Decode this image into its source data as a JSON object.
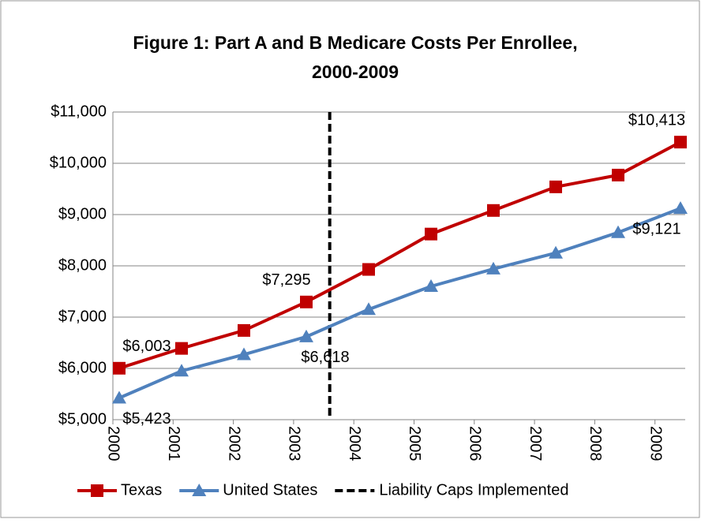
{
  "chart_data": {
    "type": "line",
    "title": [
      "Figure 1: Part A and B Medicare Costs Per Enrollee,",
      "2000-2009"
    ],
    "categories": [
      "2000",
      "2001",
      "2002",
      "2003",
      "2004",
      "2005",
      "2006",
      "2007",
      "2008",
      "2009"
    ],
    "series": [
      {
        "name": "Texas",
        "color": "#c00000",
        "marker": "square",
        "values": [
          6003,
          6390,
          6740,
          7295,
          7930,
          8620,
          9080,
          9540,
          9770,
          10413
        ],
        "value_labels": [
          "$6,003",
          null,
          null,
          "$7,295",
          null,
          null,
          null,
          null,
          null,
          "$10,413"
        ]
      },
      {
        "name": "United States",
        "color": "#4f81bd",
        "marker": "triangle",
        "values": [
          5423,
          5950,
          6270,
          6618,
          7150,
          7600,
          7940,
          8250,
          8650,
          9121
        ],
        "value_labels": [
          "$5,423",
          null,
          null,
          "$6,618",
          null,
          null,
          null,
          null,
          null,
          "$9,121"
        ]
      }
    ],
    "vline": {
      "name": "Liability Caps Implemented",
      "x": 2003.6,
      "color": "#000000"
    },
    "ylim": [
      5000,
      11000
    ],
    "yticks": [
      {
        "value": 5000,
        "label": "$5,000"
      },
      {
        "value": 6000,
        "label": "$6,000"
      },
      {
        "value": 7000,
        "label": "$7,000"
      },
      {
        "value": 8000,
        "label": "$8,000"
      },
      {
        "value": 9000,
        "label": "$9,000"
      },
      {
        "value": 10000,
        "label": "$10,000"
      },
      {
        "value": 11000,
        "label": "$11,000"
      }
    ],
    "grid": true,
    "legend": "bottom"
  }
}
